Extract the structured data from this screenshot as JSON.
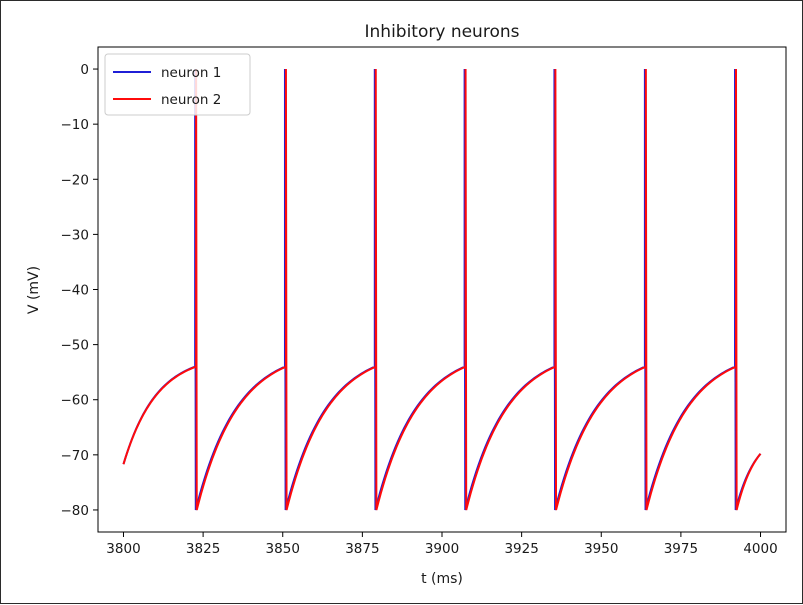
{
  "chart_data": {
    "type": "line",
    "title": "Inhibitory neurons",
    "xlabel": "t (ms)",
    "ylabel": "V (mV)",
    "xlim": [
      3792,
      4008
    ],
    "ylim": [
      -84,
      4
    ],
    "xticks": [
      3800,
      3825,
      3850,
      3875,
      3900,
      3925,
      3950,
      3975,
      4000
    ],
    "yticks": [
      0,
      -10,
      -20,
      -30,
      -40,
      -50,
      -60,
      -70,
      -80
    ],
    "grid": false,
    "legend_position": "top-left",
    "model": {
      "v_reset": -80,
      "v_threshold": -54,
      "v_peak": 0,
      "v_end": -69.8
    },
    "series": [
      {
        "name": "neuron 1",
        "color": "#1f1fd6",
        "start": [
          3800,
          -71.7
        ],
        "spike_times": [
          3822.5,
          3850.7,
          3878.9,
          3907.1,
          3935.3,
          3963.7,
          3992.0
        ],
        "end": [
          4000,
          -69.8
        ]
      },
      {
        "name": "neuron 2",
        "color": "#ff0b0b",
        "start": [
          3800,
          -71.7
        ],
        "spike_times": [
          3822.8,
          3851.0,
          3879.2,
          3907.4,
          3935.6,
          3964.0,
          3992.3
        ],
        "end": [
          4000,
          -69.8
        ]
      }
    ]
  }
}
